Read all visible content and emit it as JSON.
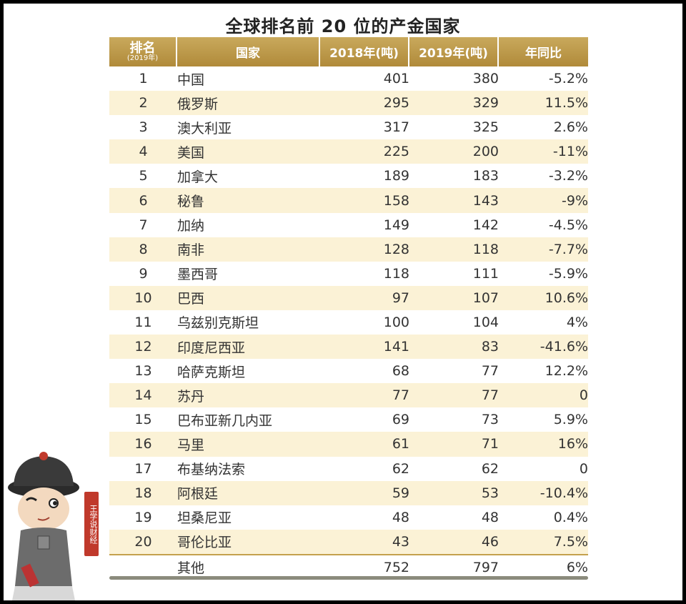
{
  "title": "全球排名前 20 位的产金国家",
  "headers": {
    "rank": "排名",
    "rank_sub": "(2019年)",
    "country": "国家",
    "y2018": "2018年(吨)",
    "y2019": "2019年(吨)",
    "yoy": "年同比"
  },
  "rows": [
    {
      "rank": "1",
      "country": "中国",
      "y2018": "401",
      "y2019": "380",
      "yoy": "-5.2%"
    },
    {
      "rank": "2",
      "country": "俄罗斯",
      "y2018": "295",
      "y2019": "329",
      "yoy": "11.5%"
    },
    {
      "rank": "3",
      "country": "澳大利亚",
      "y2018": "317",
      "y2019": "325",
      "yoy": "2.6%"
    },
    {
      "rank": "4",
      "country": "美国",
      "y2018": "225",
      "y2019": "200",
      "yoy": "-11%"
    },
    {
      "rank": "5",
      "country": "加拿大",
      "y2018": "189",
      "y2019": "183",
      "yoy": "-3.2%"
    },
    {
      "rank": "6",
      "country": "秘鲁",
      "y2018": "158",
      "y2019": "143",
      "yoy": "-9%"
    },
    {
      "rank": "7",
      "country": "加纳",
      "y2018": "149",
      "y2019": "142",
      "yoy": "-4.5%"
    },
    {
      "rank": "8",
      "country": "南非",
      "y2018": "128",
      "y2019": "118",
      "yoy": "-7.7%"
    },
    {
      "rank": "9",
      "country": "墨西哥",
      "y2018": "118",
      "y2019": "111",
      "yoy": "-5.9%"
    },
    {
      "rank": "10",
      "country": "巴西",
      "y2018": "97",
      "y2019": "107",
      "yoy": "10.6%"
    },
    {
      "rank": "11",
      "country": "乌兹别克斯坦",
      "y2018": "100",
      "y2019": "104",
      "yoy": "4%"
    },
    {
      "rank": "12",
      "country": "印度尼西亚",
      "y2018": "141",
      "y2019": "83",
      "yoy": "-41.6%"
    },
    {
      "rank": "13",
      "country": "哈萨克斯坦",
      "y2018": "68",
      "y2019": "77",
      "yoy": "12.2%"
    },
    {
      "rank": "14",
      "country": "苏丹",
      "y2018": "77",
      "y2019": "77",
      "yoy": "0"
    },
    {
      "rank": "15",
      "country": "巴布亚新几内亚",
      "y2018": "69",
      "y2019": "73",
      "yoy": "5.9%"
    },
    {
      "rank": "16",
      "country": "马里",
      "y2018": "61",
      "y2019": "71",
      "yoy": "16%"
    },
    {
      "rank": "17",
      "country": "布基纳法索",
      "y2018": "62",
      "y2019": "62",
      "yoy": "0"
    },
    {
      "rank": "18",
      "country": "阿根廷",
      "y2018": "59",
      "y2019": "53",
      "yoy": "-10.4%"
    },
    {
      "rank": "19",
      "country": "坦桑尼亚",
      "y2018": "48",
      "y2019": "48",
      "yoy": "0.4%"
    },
    {
      "rank": "20",
      "country": "哥伦比亚",
      "y2018": "43",
      "y2019": "46",
      "yoy": "7.5%"
    }
  ],
  "other": {
    "rank": "",
    "country": "其他",
    "y2018": "752",
    "y2019": "797",
    "yoy": "6%"
  },
  "mascot": {
    "seal_text": "王学说财经"
  },
  "colors": {
    "header_gold": "#b99546",
    "stripe": "#fbf2d6"
  }
}
